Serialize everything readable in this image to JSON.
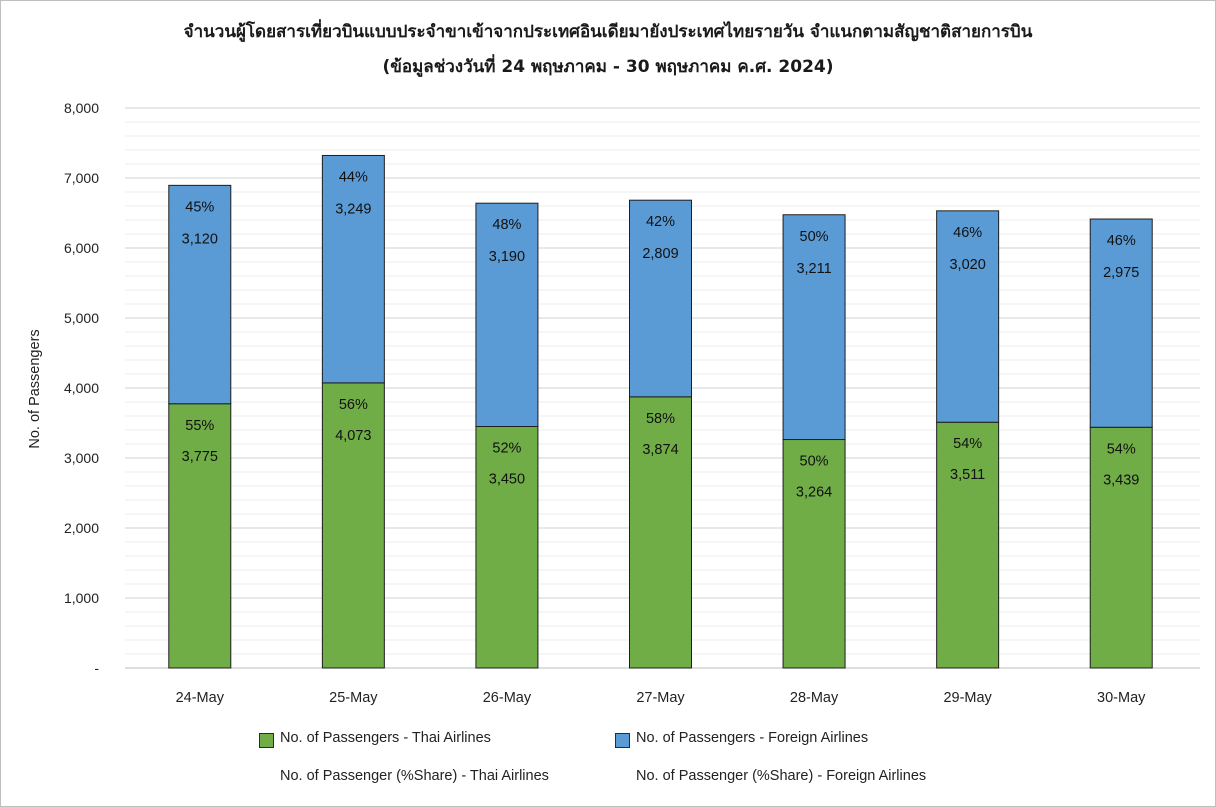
{
  "chart_data": {
    "type": "bar",
    "stacked": true,
    "title": "จำนวนผู้โดยสารเที่ยวบินแบบประจำขาเข้าจากประเทศอินเดียมายังประเทศไทยรายวัน  จำแนกตามสัญชาติสายการบิน",
    "subtitle": "(ข้อมูลช่วงวันที่ 24 พฤษภาคม - 30 พฤษภาคม ค.ศ. 2024)",
    "ylabel": "No. of Passengers",
    "xlabel": "",
    "ylim": [
      0,
      8000
    ],
    "yticks": [
      {
        "value": 0,
        "label": "-"
      },
      {
        "value": 1000,
        "label": "1,000"
      },
      {
        "value": 2000,
        "label": "2,000"
      },
      {
        "value": 3000,
        "label": "3,000"
      },
      {
        "value": 4000,
        "label": "4,000"
      },
      {
        "value": 5000,
        "label": "5,000"
      },
      {
        "value": 6000,
        "label": "6,000"
      },
      {
        "value": 7000,
        "label": "7,000"
      },
      {
        "value": 8000,
        "label": "8,000"
      }
    ],
    "minor_gridlines": true,
    "categories": [
      "24-May",
      "25-May",
      "26-May",
      "27-May",
      "28-May",
      "29-May",
      "30-May"
    ],
    "series": [
      {
        "name": "No. of Passengers - Thai Airlines",
        "color": "#70ad47",
        "values": [
          3775,
          4073,
          3450,
          3874,
          3264,
          3511,
          3439
        ],
        "value_labels": [
          "3,775",
          "4,073",
          "3,450",
          "3,874",
          "3,264",
          "3,511",
          "3,439"
        ],
        "share_labels": [
          "55%",
          "56%",
          "52%",
          "58%",
          "50%",
          "54%",
          "54%"
        ]
      },
      {
        "name": "No. of Passengers - Foreign Airlines",
        "color": "#5b9bd5",
        "values": [
          3120,
          3249,
          3190,
          2809,
          3211,
          3020,
          2975
        ],
        "value_labels": [
          "3,120",
          "3,249",
          "3,190",
          "2,809",
          "3,211",
          "3,020",
          "2,975"
        ],
        "share_labels": [
          "45%",
          "44%",
          "48%",
          "42%",
          "50%",
          "46%",
          "46%"
        ]
      }
    ],
    "legend": {
      "placement": "bottom",
      "items": [
        {
          "label": "No. of Passengers - Thai Airlines",
          "swatch": "#70ad47"
        },
        {
          "label": "No. of Passengers - Foreign Airlines",
          "swatch": "#5b9bd5"
        },
        {
          "label": "No. of Passenger (%Share) - Thai Airlines",
          "swatch": null
        },
        {
          "label": "No. of Passenger (%Share) - Foreign Airlines",
          "swatch": null
        }
      ]
    }
  }
}
